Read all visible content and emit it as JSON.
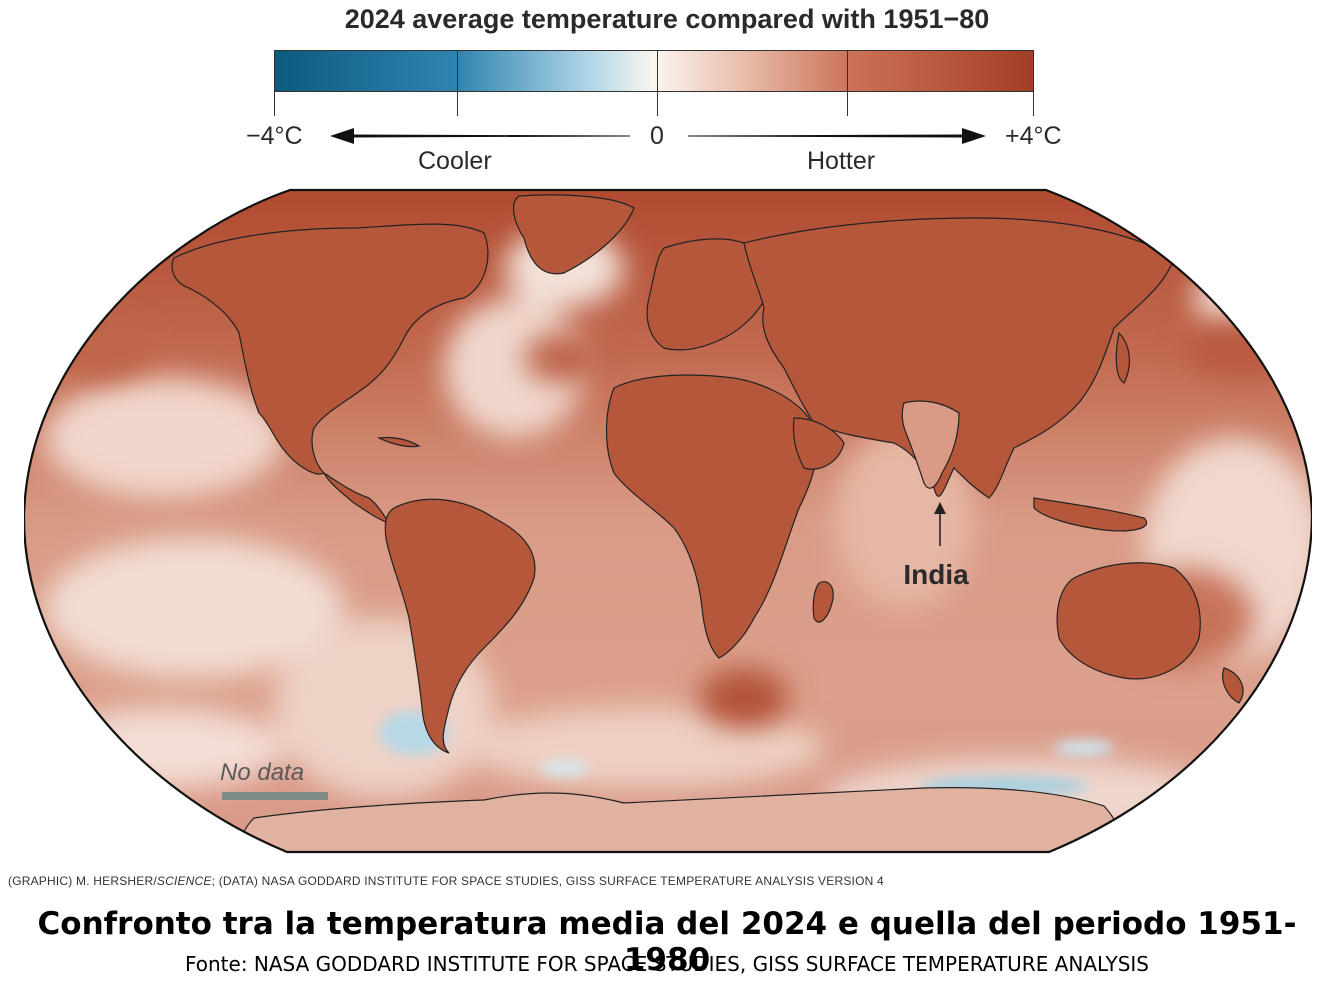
{
  "legend": {
    "title": "2024 average temperature compared with 1951−80",
    "min_label": "−4°C",
    "zero_label": "0",
    "max_label": "+4°C",
    "cooler_label": "Cooler",
    "hotter_label": "Hotter",
    "range_c": [
      -4,
      4
    ],
    "color_cold": "#0d5a80",
    "color_neutral": "#fbf5f0",
    "color_hot": "#a23e26"
  },
  "map": {
    "projection": "Robinson",
    "annotation_india": "India",
    "no_data_label": "No data",
    "no_data_color": "#7f8c86",
    "fill_base": "#c9765c"
  },
  "credit": {
    "prefix": "(GRAPHIC) M. HERSHER/",
    "italic": "SCIENCE",
    "suffix": "; (DATA) NASA GODDARD INSTITUTE FOR SPACE STUDIES, GISS SURFACE TEMPERATURE ANALYSIS VERSION 4"
  },
  "caption": {
    "title": "Confronto tra la temperatura media del 2024 e quella del periodo 1951-1980",
    "source": "Fonte: NASA GODDARD INSTITUTE FOR SPACE STUDIES, GISS SURFACE TEMPERATURE ANALYSIS"
  }
}
